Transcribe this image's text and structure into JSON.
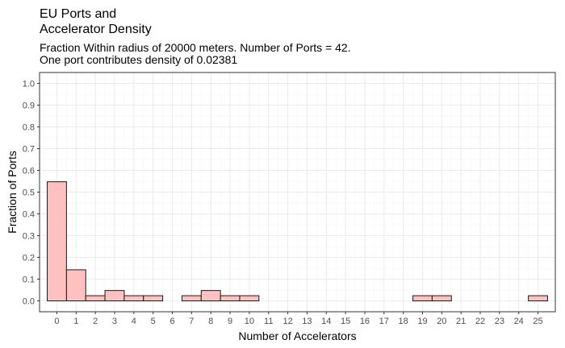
{
  "chart_data": {
    "type": "bar",
    "title": "EU Ports and\nAccelerator Density",
    "subtitle": "Fraction Within radius of 20000 meters. Number of Ports = 42.\nOne port contributes density of 0.02381",
    "xlabel": "Number of Accelerators",
    "ylabel": "Fraction of Ports",
    "x_ticks": [
      "0",
      "1",
      "2",
      "3",
      "4",
      "5",
      "6",
      "7",
      "8",
      "9",
      "10",
      "11",
      "12",
      "13",
      "14",
      "15",
      "16",
      "17",
      "18",
      "19",
      "20",
      "21",
      "22",
      "23",
      "24",
      "25"
    ],
    "y_ticks": [
      "0.0",
      "0.1",
      "0.2",
      "0.3",
      "0.4",
      "0.5",
      "0.6",
      "0.7",
      "0.8",
      "0.9",
      "1.0"
    ],
    "xlim": [
      -0.9,
      25.9
    ],
    "ylim": [
      -0.05,
      1.05
    ],
    "categories": [
      0,
      1,
      2,
      3,
      4,
      5,
      6,
      7,
      8,
      9,
      10,
      11,
      12,
      13,
      14,
      15,
      16,
      17,
      18,
      19,
      20,
      21,
      22,
      23,
      24,
      25
    ],
    "values": [
      0.5476,
      0.1429,
      0.0238,
      0.0476,
      0.0238,
      0.0238,
      0,
      0.0238,
      0.0476,
      0.0238,
      0.0238,
      0,
      0,
      0,
      0,
      0,
      0,
      0,
      0,
      0.0238,
      0.0238,
      0,
      0,
      0,
      0,
      0.0238
    ],
    "grid": true,
    "colors": {
      "bar_fill": "#ffc0c0",
      "bar_stroke": "#1a1a1a",
      "grid_major": "#ebebeb",
      "grid_minor": "#f5f5f5",
      "panel_border": "#333333"
    }
  }
}
